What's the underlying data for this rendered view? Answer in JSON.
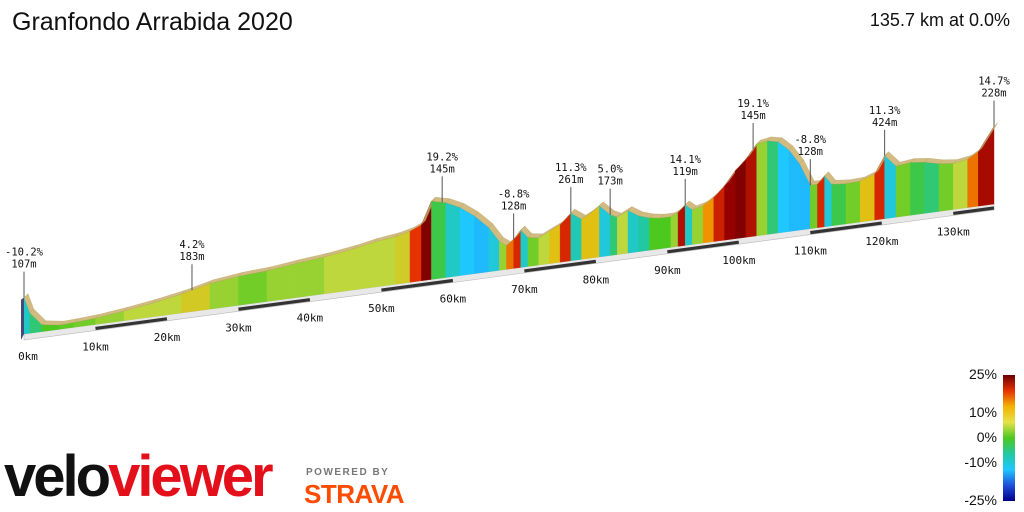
{
  "header": {
    "title": "Granfondo Arrabida 2020",
    "summary": "135.7 km at 0.0%"
  },
  "branding": {
    "logo_part1": "velo",
    "logo_part2": "viewer",
    "powered_by": "POWERED BY",
    "strava": "STRAVA"
  },
  "chart_data": {
    "type": "area",
    "title": "Granfondo Arrabida 2020",
    "xlabel": "",
    "ylabel": "",
    "x_unit": "km",
    "x_range": [
      0,
      135.7
    ],
    "x_ticks": [
      "0km",
      "10km",
      "20km",
      "30km",
      "40km",
      "50km",
      "60km",
      "70km",
      "80km",
      "90km",
      "100km",
      "110km",
      "120km",
      "130km"
    ],
    "x": [
      0,
      0.8,
      2.5,
      5,
      7,
      10,
      14,
      18,
      22,
      26,
      30,
      34,
      38,
      42,
      46,
      49,
      52,
      54,
      55.6,
      57,
      59,
      61,
      63,
      65,
      66.5,
      67.5,
      68.5,
      69.5,
      70.5,
      72,
      73.5,
      75,
      76.5,
      78,
      79,
      80.5,
      82,
      83,
      84.5,
      86,
      87.5,
      89,
      90.5,
      91.5,
      92.5,
      93.5,
      95,
      96.5,
      98,
      99.5,
      101,
      102.5,
      104,
      105.5,
      107,
      108.5,
      110,
      111,
      112,
      113,
      115,
      117,
      119,
      120.4,
      122,
      124,
      126,
      128,
      130,
      132,
      133.5,
      135.7
    ],
    "elevation_m": [
      107,
      60,
      20,
      12,
      14,
      18,
      28,
      40,
      55,
      75,
      85,
      90,
      100,
      108,
      120,
      132,
      140,
      150,
      165,
      230,
      220,
      200,
      170,
      130,
      85,
      70,
      85,
      110,
      85,
      80,
      95,
      110,
      140,
      118,
      128,
      150,
      120,
      110,
      125,
      105,
      95,
      90,
      90,
      100,
      119,
      102,
      110,
      130,
      160,
      200,
      230,
      270,
      275,
      268,
      240,
      195,
      128,
      128,
      150,
      122,
      118,
      120,
      135,
      185,
      150,
      155,
      150,
      140,
      135,
      142,
      160,
      228
    ],
    "gradient_pct": [
      -10.2,
      -5,
      -2,
      0,
      0.5,
      1,
      2,
      3,
      3,
      4.2,
      2,
      1,
      2,
      2,
      3,
      3,
      3,
      4,
      10,
      19.2,
      -1,
      -5,
      -8,
      -8.8,
      -6,
      2,
      8,
      11.3,
      -5,
      1,
      3,
      5,
      11.3,
      -4,
      5,
      5,
      -6,
      -2,
      3,
      -5,
      -3,
      0,
      0,
      2,
      14.1,
      -5,
      2,
      7,
      12,
      16,
      19.1,
      14,
      2,
      -2,
      -8,
      -8.8,
      -8.8,
      1,
      11.3,
      -6,
      -1,
      1,
      5,
      11.3,
      -6,
      1,
      -1,
      -2,
      1,
      3,
      8,
      14.7
    ],
    "annotations": [
      {
        "km": 0,
        "gradient": "-10.2%",
        "elevation": "107m"
      },
      {
        "km": 23.5,
        "gradient": "4.2%",
        "elevation": "183m"
      },
      {
        "km": 58.5,
        "gradient": "19.2%",
        "elevation": "145m"
      },
      {
        "km": 68.5,
        "gradient": "-8.8%",
        "elevation": "128m"
      },
      {
        "km": 76.5,
        "gradient": "11.3%",
        "elevation": "261m"
      },
      {
        "km": 82,
        "gradient": "5.0%",
        "elevation": "173m"
      },
      {
        "km": 92.5,
        "gradient": "14.1%",
        "elevation": "119m"
      },
      {
        "km": 102,
        "gradient": "19.1%",
        "elevation": "145m"
      },
      {
        "km": 110,
        "gradient": "-8.8%",
        "elevation": "128m"
      },
      {
        "km": 120.4,
        "gradient": "11.3%",
        "elevation": "424m"
      },
      {
        "km": 135.7,
        "gradient": "14.7%",
        "elevation": "228m"
      }
    ],
    "legend": {
      "placement": "bottom-right",
      "labels": [
        "25%",
        "10%",
        "0%",
        "-10%",
        "-25%"
      ],
      "values": [
        25,
        10,
        0,
        -10,
        -25
      ],
      "colors": [
        "#6b0000",
        "#e63200",
        "#f2b400",
        "#e6e14a",
        "#4cc81e",
        "#22c8a0",
        "#1ec8ff",
        "#1e50dc",
        "#00008a"
      ]
    },
    "colors": {
      "road": "#e8e8e8",
      "road_dark": "#333333",
      "road_edge": "#b8b8b8",
      "text": "#111111"
    }
  }
}
